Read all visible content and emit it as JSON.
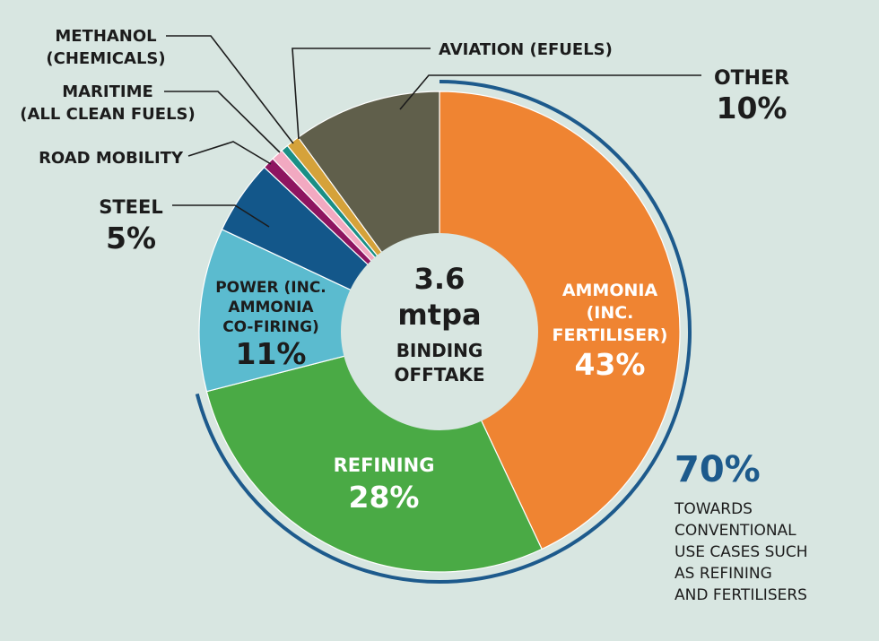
{
  "chart_data": {
    "type": "pie",
    "style": "donut",
    "center": {
      "value": "3.6",
      "unit": "mtpa",
      "label_line1": "BINDING",
      "label_line2": "OFFTAKE"
    },
    "slices": [
      {
        "key": "ammonia",
        "label_lines": [
          "AMMONIA",
          "(INC.",
          "FERTILISER)"
        ],
        "value": 43,
        "display": "43%",
        "color": "#ef8432"
      },
      {
        "key": "refining",
        "label_lines": [
          "REFINING"
        ],
        "value": 28,
        "display": "28%",
        "color": "#4aaa45"
      },
      {
        "key": "power",
        "label_lines": [
          "POWER (INC.",
          "AMMONIA",
          "CO-FIRING)"
        ],
        "value": 11,
        "display": "11%",
        "color": "#5bbbcf"
      },
      {
        "key": "steel",
        "label_lines": [
          "STEEL"
        ],
        "value": 5,
        "display": "5%",
        "color": "#13578a"
      },
      {
        "key": "road",
        "label_lines": [
          "ROAD MOBILITY"
        ],
        "value": 0.8,
        "display": "",
        "color": "#8e1460"
      },
      {
        "key": "maritime",
        "label_lines": [
          "MARITIME",
          "(ALL CLEAN FUELS)"
        ],
        "value": 0.8,
        "display": "",
        "color": "#f2a9c1"
      },
      {
        "key": "methanol",
        "label_lines": [
          "METHANOL",
          "(CHEMICALS)"
        ],
        "value": 0.5,
        "display": "",
        "color": "#1a8f86"
      },
      {
        "key": "aviation",
        "label_lines": [
          "AVIATION (EFUELS)"
        ],
        "value": 0.9,
        "display": "",
        "color": "#d5a23a"
      },
      {
        "key": "other",
        "label_lines": [
          "OTHER"
        ],
        "value": 10,
        "display": "10%",
        "color": "#605f4b"
      }
    ],
    "annotation": {
      "value": "70%",
      "text_lines": [
        "TOWARDS",
        "CONVENTIONAL",
        "USE CASES SUCH",
        "AS REFINING",
        "AND FERTILISERS"
      ],
      "color": "#1d5a8c"
    }
  }
}
